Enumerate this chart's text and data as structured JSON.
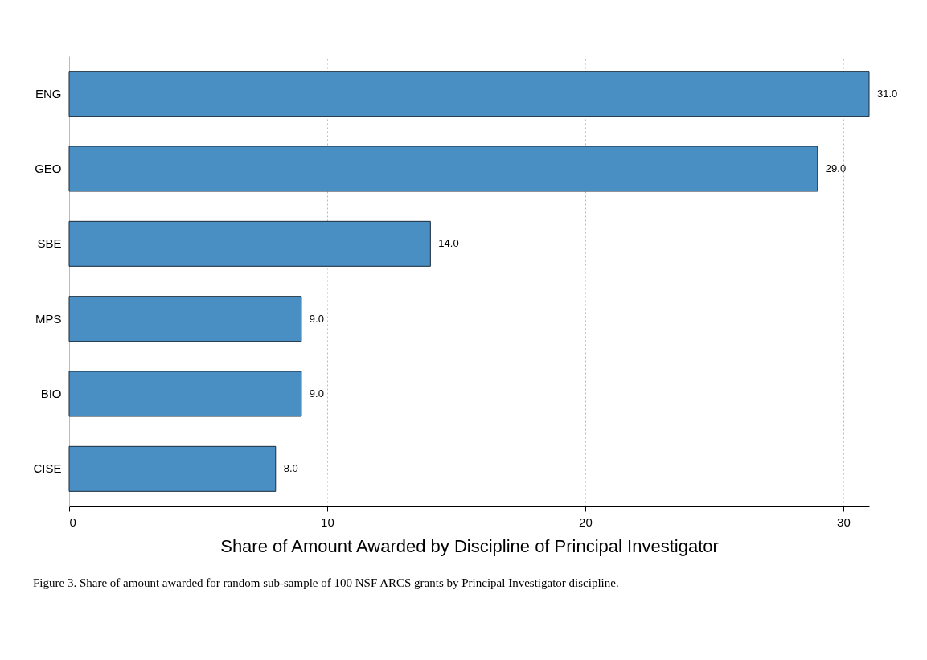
{
  "chart_data": {
    "type": "bar",
    "orientation": "horizontal",
    "categories": [
      "ENG",
      "GEO",
      "SBE",
      "MPS",
      "BIO",
      "CISE"
    ],
    "values": [
      31.0,
      29.0,
      14.0,
      9.0,
      9.0,
      8.0
    ],
    "color": "#4a8fc3",
    "value_labels": [
      "31.0",
      "29.0",
      "14.0",
      "9.0",
      "9.0",
      "8.0"
    ],
    "xlabel": "Share of Amount Awarded by  Discipline of Principal Investigator",
    "xlim": [
      0,
      31
    ],
    "xticks": [
      0,
      10,
      20,
      30
    ],
    "grid": "x",
    "annotations": [
      "Figure 3. Share of amount awarded for random sub-sample of 100 NSF ARCS grants by Principal Investigator discipline."
    ]
  }
}
